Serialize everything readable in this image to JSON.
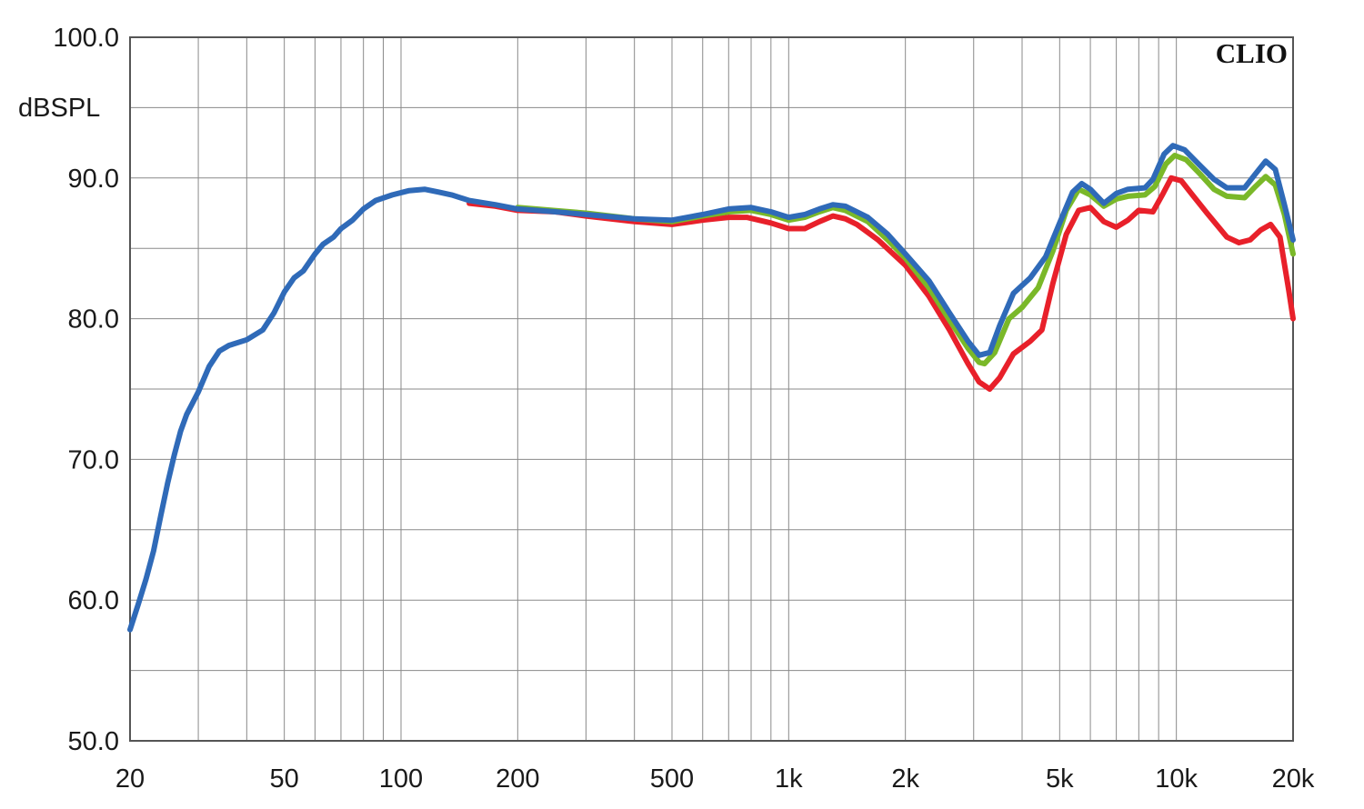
{
  "chart_data": {
    "type": "line",
    "brand": "CLIO",
    "ylabel": "dBSPL",
    "xscale": "log",
    "xlim": [
      20,
      20000
    ],
    "ylim": [
      50,
      100
    ],
    "grid": true,
    "x_ticks": [
      {
        "value": 20,
        "label": "20"
      },
      {
        "value": 50,
        "label": "50"
      },
      {
        "value": 100,
        "label": "100"
      },
      {
        "value": 200,
        "label": "200"
      },
      {
        "value": 500,
        "label": "500"
      },
      {
        "value": 1000,
        "label": "1k"
      },
      {
        "value": 2000,
        "label": "2k"
      },
      {
        "value": 5000,
        "label": "5k"
      },
      {
        "value": 10000,
        "label": "10k"
      },
      {
        "value": 20000,
        "label": "20k"
      }
    ],
    "y_ticks": [
      {
        "value": 100,
        "label": "100.0"
      },
      {
        "value": 90,
        "label": "90.0"
      },
      {
        "value": 80,
        "label": "80.0"
      },
      {
        "value": 70,
        "label": "70.0"
      },
      {
        "value": 60,
        "label": "60.0"
      },
      {
        "value": 50,
        "label": "50.0"
      }
    ],
    "series": [
      {
        "color": "#e8202a",
        "points": [
          [
            150,
            88.2
          ],
          [
            175,
            88.0
          ],
          [
            200,
            87.7
          ],
          [
            250,
            87.6
          ],
          [
            300,
            87.3
          ],
          [
            400,
            86.9
          ],
          [
            500,
            86.7
          ],
          [
            600,
            87.0
          ],
          [
            700,
            87.2
          ],
          [
            780,
            87.2
          ],
          [
            900,
            86.8
          ],
          [
            1000,
            86.4
          ],
          [
            1100,
            86.4
          ],
          [
            1200,
            86.9
          ],
          [
            1300,
            87.3
          ],
          [
            1400,
            87.1
          ],
          [
            1500,
            86.7
          ],
          [
            1700,
            85.6
          ],
          [
            2000,
            83.8
          ],
          [
            2300,
            81.6
          ],
          [
            2600,
            79.2
          ],
          [
            2900,
            76.8
          ],
          [
            3100,
            75.5
          ],
          [
            3300,
            75.0
          ],
          [
            3500,
            75.8
          ],
          [
            3800,
            77.5
          ],
          [
            4200,
            78.4
          ],
          [
            4500,
            79.2
          ],
          [
            4800,
            82.5
          ],
          [
            5200,
            86.0
          ],
          [
            5600,
            87.7
          ],
          [
            6000,
            87.9
          ],
          [
            6500,
            86.9
          ],
          [
            7000,
            86.5
          ],
          [
            7500,
            87.0
          ],
          [
            8000,
            87.7
          ],
          [
            8700,
            87.6
          ],
          [
            9200,
            88.8
          ],
          [
            9700,
            90.0
          ],
          [
            10300,
            89.8
          ],
          [
            11000,
            88.8
          ],
          [
            12000,
            87.5
          ],
          [
            13500,
            85.8
          ],
          [
            14500,
            85.4
          ],
          [
            15500,
            85.6
          ],
          [
            16500,
            86.3
          ],
          [
            17500,
            86.7
          ],
          [
            18500,
            85.8
          ],
          [
            19500,
            82.0
          ],
          [
            20000,
            80.0
          ]
        ]
      },
      {
        "color": "#7ab829",
        "points": [
          [
            200,
            87.9
          ],
          [
            300,
            87.5
          ],
          [
            400,
            87.1
          ],
          [
            500,
            86.9
          ],
          [
            600,
            87.3
          ],
          [
            700,
            87.6
          ],
          [
            800,
            87.7
          ],
          [
            900,
            87.4
          ],
          [
            1000,
            87.0
          ],
          [
            1100,
            87.2
          ],
          [
            1200,
            87.6
          ],
          [
            1300,
            87.9
          ],
          [
            1400,
            87.7
          ],
          [
            1600,
            86.9
          ],
          [
            1800,
            85.6
          ],
          [
            2000,
            84.3
          ],
          [
            2300,
            82.2
          ],
          [
            2600,
            79.9
          ],
          [
            2900,
            77.9
          ],
          [
            3100,
            76.9
          ],
          [
            3200,
            76.8
          ],
          [
            3400,
            77.6
          ],
          [
            3700,
            80.0
          ],
          [
            4000,
            80.8
          ],
          [
            4400,
            82.2
          ],
          [
            4800,
            84.8
          ],
          [
            5200,
            87.7
          ],
          [
            5600,
            89.2
          ],
          [
            6000,
            88.8
          ],
          [
            6500,
            88.0
          ],
          [
            7000,
            88.5
          ],
          [
            7500,
            88.7
          ],
          [
            8300,
            88.8
          ],
          [
            8800,
            89.4
          ],
          [
            9400,
            91.0
          ],
          [
            9900,
            91.6
          ],
          [
            10600,
            91.3
          ],
          [
            11500,
            90.3
          ],
          [
            12500,
            89.2
          ],
          [
            13500,
            88.7
          ],
          [
            15000,
            88.6
          ],
          [
            16000,
            89.4
          ],
          [
            17000,
            90.1
          ],
          [
            18000,
            89.5
          ],
          [
            19000,
            87.4
          ],
          [
            20000,
            84.6
          ]
        ]
      },
      {
        "color": "#2f6ab8",
        "points": [
          [
            20,
            57.9
          ],
          [
            21,
            59.7
          ],
          [
            22,
            61.5
          ],
          [
            23,
            63.5
          ],
          [
            24,
            66.0
          ],
          [
            25,
            68.3
          ],
          [
            26,
            70.3
          ],
          [
            27,
            72.0
          ],
          [
            28,
            73.2
          ],
          [
            30,
            74.8
          ],
          [
            32,
            76.6
          ],
          [
            34,
            77.7
          ],
          [
            36,
            78.1
          ],
          [
            40,
            78.5
          ],
          [
            44,
            79.2
          ],
          [
            47,
            80.4
          ],
          [
            50,
            81.9
          ],
          [
            53,
            82.9
          ],
          [
            56,
            83.4
          ],
          [
            60,
            84.6
          ],
          [
            63,
            85.3
          ],
          [
            67,
            85.8
          ],
          [
            70,
            86.4
          ],
          [
            75,
            87.0
          ],
          [
            80,
            87.8
          ],
          [
            86,
            88.4
          ],
          [
            95,
            88.8
          ],
          [
            105,
            89.1
          ],
          [
            115,
            89.2
          ],
          [
            125,
            89.0
          ],
          [
            135,
            88.8
          ],
          [
            150,
            88.4
          ],
          [
            175,
            88.1
          ],
          [
            200,
            87.8
          ],
          [
            250,
            87.6
          ],
          [
            300,
            87.4
          ],
          [
            400,
            87.1
          ],
          [
            500,
            87.0
          ],
          [
            600,
            87.4
          ],
          [
            700,
            87.8
          ],
          [
            800,
            87.9
          ],
          [
            900,
            87.6
          ],
          [
            1000,
            87.2
          ],
          [
            1100,
            87.4
          ],
          [
            1200,
            87.8
          ],
          [
            1300,
            88.1
          ],
          [
            1400,
            88.0
          ],
          [
            1600,
            87.2
          ],
          [
            1800,
            86.0
          ],
          [
            2000,
            84.6
          ],
          [
            2300,
            82.7
          ],
          [
            2600,
            80.4
          ],
          [
            2900,
            78.4
          ],
          [
            3100,
            77.4
          ],
          [
            3300,
            77.6
          ],
          [
            3500,
            79.5
          ],
          [
            3800,
            81.8
          ],
          [
            4200,
            82.9
          ],
          [
            4600,
            84.4
          ],
          [
            5000,
            86.8
          ],
          [
            5400,
            89.0
          ],
          [
            5700,
            89.6
          ],
          [
            6000,
            89.2
          ],
          [
            6500,
            88.2
          ],
          [
            7000,
            88.9
          ],
          [
            7500,
            89.2
          ],
          [
            8300,
            89.3
          ],
          [
            8700,
            89.9
          ],
          [
            9300,
            91.7
          ],
          [
            9800,
            92.3
          ],
          [
            10500,
            92.0
          ],
          [
            11500,
            90.9
          ],
          [
            12500,
            89.9
          ],
          [
            13500,
            89.3
          ],
          [
            15000,
            89.3
          ],
          [
            16000,
            90.3
          ],
          [
            17000,
            91.2
          ],
          [
            18000,
            90.6
          ],
          [
            19000,
            88.1
          ],
          [
            20000,
            85.6
          ]
        ]
      }
    ]
  }
}
